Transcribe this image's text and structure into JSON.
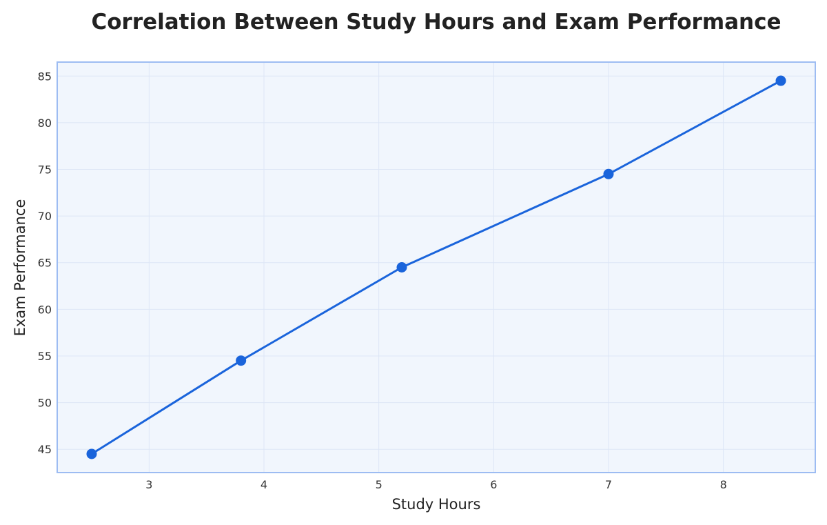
{
  "chart_data": {
    "type": "line",
    "title": "Correlation Between Study Hours and Exam Performance",
    "xlabel": "Study Hours",
    "ylabel": "Exam Performance",
    "x": [
      2.5,
      3.8,
      5.2,
      7.0,
      8.5
    ],
    "series": [
      {
        "values": [
          44.5,
          54.5,
          64.5,
          74.5,
          84.5
        ]
      }
    ],
    "xlim": [
      2.2,
      8.8
    ],
    "ylim": [
      42.5,
      86.5
    ],
    "xticks": [
      3,
      4,
      5,
      6,
      7,
      8
    ],
    "yticks": [
      45,
      50,
      55,
      60,
      65,
      70,
      75,
      80,
      85
    ],
    "grid": true,
    "legend": "none",
    "colors": {
      "line": "#1a64db",
      "marker": "#1a64db",
      "plot_background": "#f1f6fd",
      "frame": "#9dbcf2",
      "grid": "#dde6f6"
    }
  }
}
